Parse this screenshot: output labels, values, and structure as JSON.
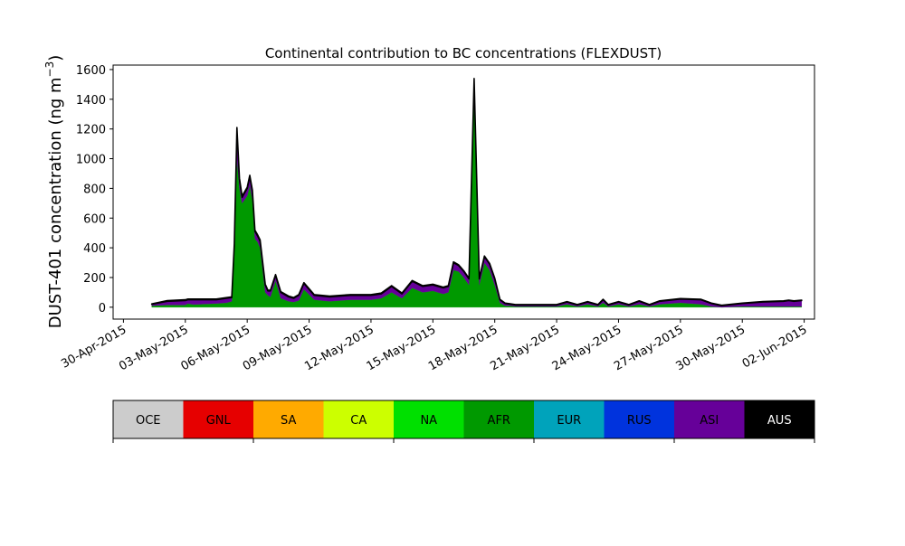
{
  "chart_data": {
    "type": "area",
    "stacked": true,
    "title": "Continental contribution to BC concentrations (FLEXDUST)",
    "ylabel": "DUST-401 concentration (ng m⁻³)",
    "ylabel_main": "DUST-401 concentration (ng m",
    "ylabel_exp": "−3",
    "ylabel_close": ")",
    "ylim": [
      -80,
      1630
    ],
    "yticks": [
      0,
      200,
      400,
      600,
      800,
      1000,
      1200,
      1400,
      1600
    ],
    "xrange": [
      "2015-04-29T12:00",
      "2015-06-02T12:00"
    ],
    "xticks": [
      "2015-04-30",
      "2015-05-03",
      "2015-05-06",
      "2015-05-09",
      "2015-05-12",
      "2015-05-15",
      "2015-05-18",
      "2015-05-21",
      "2015-05-24",
      "2015-05-27",
      "2015-05-30",
      "2015-06-02"
    ],
    "xtick_labels": [
      "30-Apr-2015",
      "03-May-2015",
      "06-May-2015",
      "09-May-2015",
      "12-May-2015",
      "15-May-2015",
      "18-May-2015",
      "21-May-2015",
      "24-May-2015",
      "27-May-2015",
      "30-May-2015",
      "02-Jun-2015"
    ],
    "x": [
      "2015-05-01T09:00",
      "2015-05-02T03:00",
      "2015-05-03T00:00",
      "2015-05-03T03:00",
      "2015-05-03T09:00",
      "2015-05-04T12:00",
      "2015-05-05T00:00",
      "2015-05-05T06:00",
      "2015-05-05T09:00",
      "2015-05-05T12:00",
      "2015-05-05T15:00",
      "2015-05-05T18:00",
      "2015-05-06T00:00",
      "2015-05-06T03:00",
      "2015-05-06T06:00",
      "2015-05-06T09:00",
      "2015-05-06T12:00",
      "2015-05-06T15:00",
      "2015-05-06T21:00",
      "2015-05-07T00:00",
      "2015-05-07T03:00",
      "2015-05-07T09:00",
      "2015-05-07T15:00",
      "2015-05-08T00:00",
      "2015-05-08T06:00",
      "2015-05-08T12:00",
      "2015-05-08T18:00",
      "2015-05-09T06:00",
      "2015-05-10T00:00",
      "2015-05-11T00:00",
      "2015-05-11T12:00",
      "2015-05-11T18:00",
      "2015-05-12T00:00",
      "2015-05-12T06:00",
      "2015-05-12T12:00",
      "2015-05-13T00:00",
      "2015-05-13T12:00",
      "2015-05-14T00:00",
      "2015-05-14T12:00",
      "2015-05-15T00:00",
      "2015-05-15T12:00",
      "2015-05-15T18:00",
      "2015-05-16T00:00",
      "2015-05-16T06:00",
      "2015-05-16T12:00",
      "2015-05-16T18:00",
      "2015-05-17T00:00",
      "2015-05-17T06:00",
      "2015-05-17T12:00",
      "2015-05-17T18:00",
      "2015-05-18T00:00",
      "2015-05-18T06:00",
      "2015-05-18T12:00",
      "2015-05-18T18:00",
      "2015-05-19T00:00",
      "2015-05-19T03:00",
      "2015-05-19T06:00",
      "2015-05-19T09:00",
      "2015-05-19T15:00",
      "2015-05-19T21:00",
      "2015-05-20T00:00",
      "2015-05-20T06:00",
      "2015-05-20T12:00",
      "2015-05-21T00:00",
      "2015-05-21T12:00",
      "2015-05-22T00:00",
      "2015-05-22T12:00",
      "2015-05-23T00:00",
      "2015-05-23T06:00",
      "2015-05-23T12:00",
      "2015-05-24T00:00",
      "2015-05-24T12:00",
      "2015-05-25T00:00",
      "2015-05-25T12:00",
      "2015-05-26T00:00",
      "2015-05-27T00:00",
      "2015-05-28T00:00",
      "2015-05-28T12:00",
      "2015-05-29T00:00",
      "2015-05-30T00:00",
      "2015-05-31T00:00",
      "2015-06-01T00:00",
      "2015-06-01T06:00",
      "2015-06-01T12:00",
      "2015-06-01T21:00"
    ],
    "series": [
      {
        "name": "AFR",
        "color": "#009900",
        "values": [
          10,
          15,
          15,
          25,
          18,
          25,
          30,
          40,
          400,
          1000,
          800,
          700,
          750,
          820,
          720,
          460,
          440,
          400,
          100,
          80,
          70,
          180,
          60,
          40,
          35,
          45,
          120,
          50,
          40,
          50,
          50,
          50,
          50,
          55,
          60,
          100,
          60,
          130,
          100,
          110,
          90,
          100,
          250,
          240,
          200,
          150,
          1490,
          150,
          300,
          250,
          150,
          30,
          10,
          10,
          5,
          5,
          5,
          5,
          5,
          5,
          5,
          5,
          5,
          5,
          20,
          5,
          20,
          5,
          30,
          5,
          20,
          5,
          20,
          5,
          20,
          30,
          20,
          5,
          0,
          5,
          5,
          5,
          5,
          5,
          5
        ]
      },
      {
        "name": "ASI",
        "color": "#660099",
        "values": [
          10,
          25,
          30,
          25,
          32,
          25,
          30,
          25,
          20,
          200,
          60,
          40,
          50,
          60,
          60,
          50,
          40,
          45,
          50,
          30,
          40,
          35,
          40,
          30,
          25,
          35,
          40,
          30,
          30,
          30,
          30,
          30,
          30,
          30,
          30,
          40,
          30,
          45,
          40,
          40,
          40,
          40,
          50,
          40,
          40,
          40,
          40,
          40,
          40,
          40,
          40,
          20,
          15,
          10,
          10,
          10,
          10,
          10,
          10,
          10,
          10,
          10,
          10,
          10,
          15,
          10,
          15,
          10,
          20,
          10,
          15,
          10,
          20,
          10,
          20,
          25,
          30,
          20,
          10,
          20,
          30,
          35,
          40,
          35,
          40
        ]
      },
      {
        "name": "AUS",
        "color": "#000000",
        "values": [
          3,
          5,
          5,
          5,
          5,
          5,
          5,
          5,
          5,
          10,
          8,
          8,
          8,
          8,
          8,
          8,
          8,
          8,
          5,
          5,
          5,
          5,
          5,
          5,
          5,
          5,
          5,
          5,
          5,
          5,
          5,
          5,
          5,
          5,
          5,
          5,
          5,
          5,
          5,
          5,
          5,
          5,
          5,
          5,
          5,
          5,
          10,
          5,
          5,
          5,
          5,
          3,
          3,
          3,
          3,
          3,
          3,
          3,
          3,
          3,
          3,
          3,
          3,
          3,
          3,
          3,
          3,
          3,
          3,
          3,
          3,
          3,
          3,
          3,
          3,
          3,
          3,
          3,
          3,
          3,
          3,
          3,
          3,
          3,
          3
        ]
      }
    ],
    "legend": {
      "placement": "bottom",
      "items": [
        {
          "name": "OCE",
          "color": "#cccccc",
          "text_color": "#000000"
        },
        {
          "name": "GNL",
          "color": "#e60000",
          "text_color": "#000000"
        },
        {
          "name": "SA",
          "color": "#ffaa00",
          "text_color": "#000000"
        },
        {
          "name": "CA",
          "color": "#ccff00",
          "text_color": "#000000"
        },
        {
          "name": "NA",
          "color": "#00e000",
          "text_color": "#000000"
        },
        {
          "name": "AFR",
          "color": "#009900",
          "text_color": "#000000"
        },
        {
          "name": "EUR",
          "color": "#00a3bb",
          "text_color": "#000000"
        },
        {
          "name": "RUS",
          "color": "#0033dd",
          "text_color": "#000000"
        },
        {
          "name": "ASI",
          "color": "#660099",
          "text_color": "#000000"
        },
        {
          "name": "AUS",
          "color": "#000000",
          "text_color": "#ffffff"
        }
      ]
    },
    "grid": false
  }
}
